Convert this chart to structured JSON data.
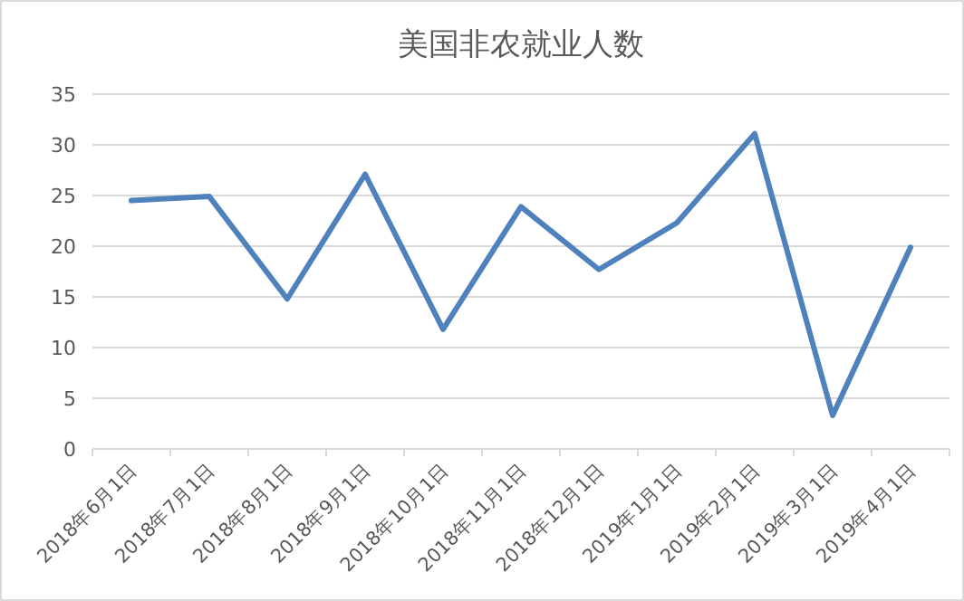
{
  "chart_data": {
    "type": "line",
    "title": "美国非农就业人数",
    "categories": [
      "2018年6月1日",
      "2018年7月1日",
      "2018年8月1日",
      "2018年9月1日",
      "2018年10月1日",
      "2018年11月1日",
      "2018年12月1日",
      "2019年1月1日",
      "2019年2月1日",
      "2019年3月1日",
      "2019年4月1日"
    ],
    "series": [
      {
        "color": "#4f81bd",
        "values": [
          24.5,
          24.9,
          14.8,
          27.1,
          11.8,
          23.9,
          17.7,
          22.3,
          31.1,
          3.3,
          19.9
        ]
      }
    ],
    "ylim": [
      0,
      35
    ],
    "yticks": [
      0,
      5,
      10,
      15,
      20,
      25,
      30,
      35
    ],
    "grid": "y",
    "marker": "none",
    "line_style": "solid"
  }
}
